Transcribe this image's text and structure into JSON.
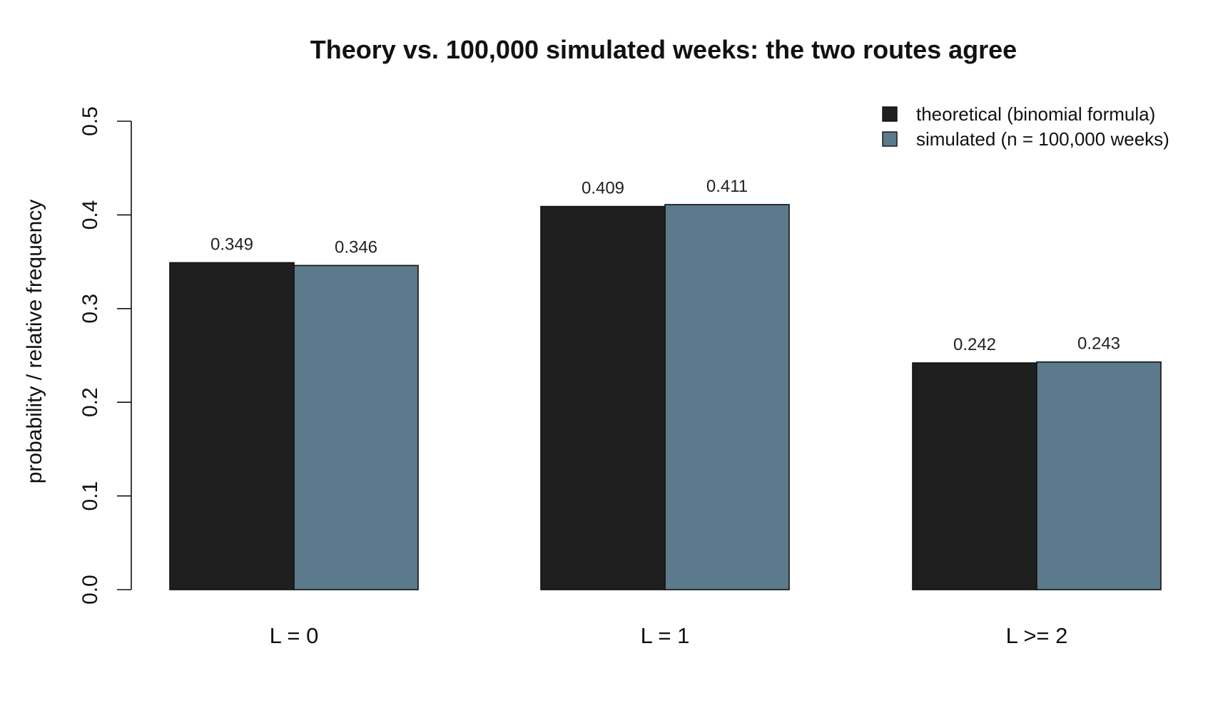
{
  "chart_data": {
    "type": "bar",
    "title": "Theory vs. 100,000 simulated weeks: the two routes agree",
    "xlabel": "",
    "ylabel": "probability / relative frequency",
    "ylim": [
      0,
      0.5
    ],
    "yticks": [
      "0.0",
      "0.1",
      "0.2",
      "0.3",
      "0.4",
      "0.5"
    ],
    "categories": [
      "L = 0",
      "L = 1",
      "L >= 2"
    ],
    "series": [
      {
        "name": "theoretical (binomial formula)",
        "color": "#1f1f1f",
        "values": [
          0.349,
          0.409,
          0.242
        ],
        "labels": [
          "0.349",
          "0.409",
          "0.242"
        ]
      },
      {
        "name": "simulated (n = 100,000 weeks)",
        "color": "#5b7a8b",
        "values": [
          0.346,
          0.411,
          0.243
        ],
        "labels": [
          "0.346",
          "0.411",
          "0.243"
        ]
      }
    ],
    "grid": false,
    "legend_position": "top-right"
  }
}
